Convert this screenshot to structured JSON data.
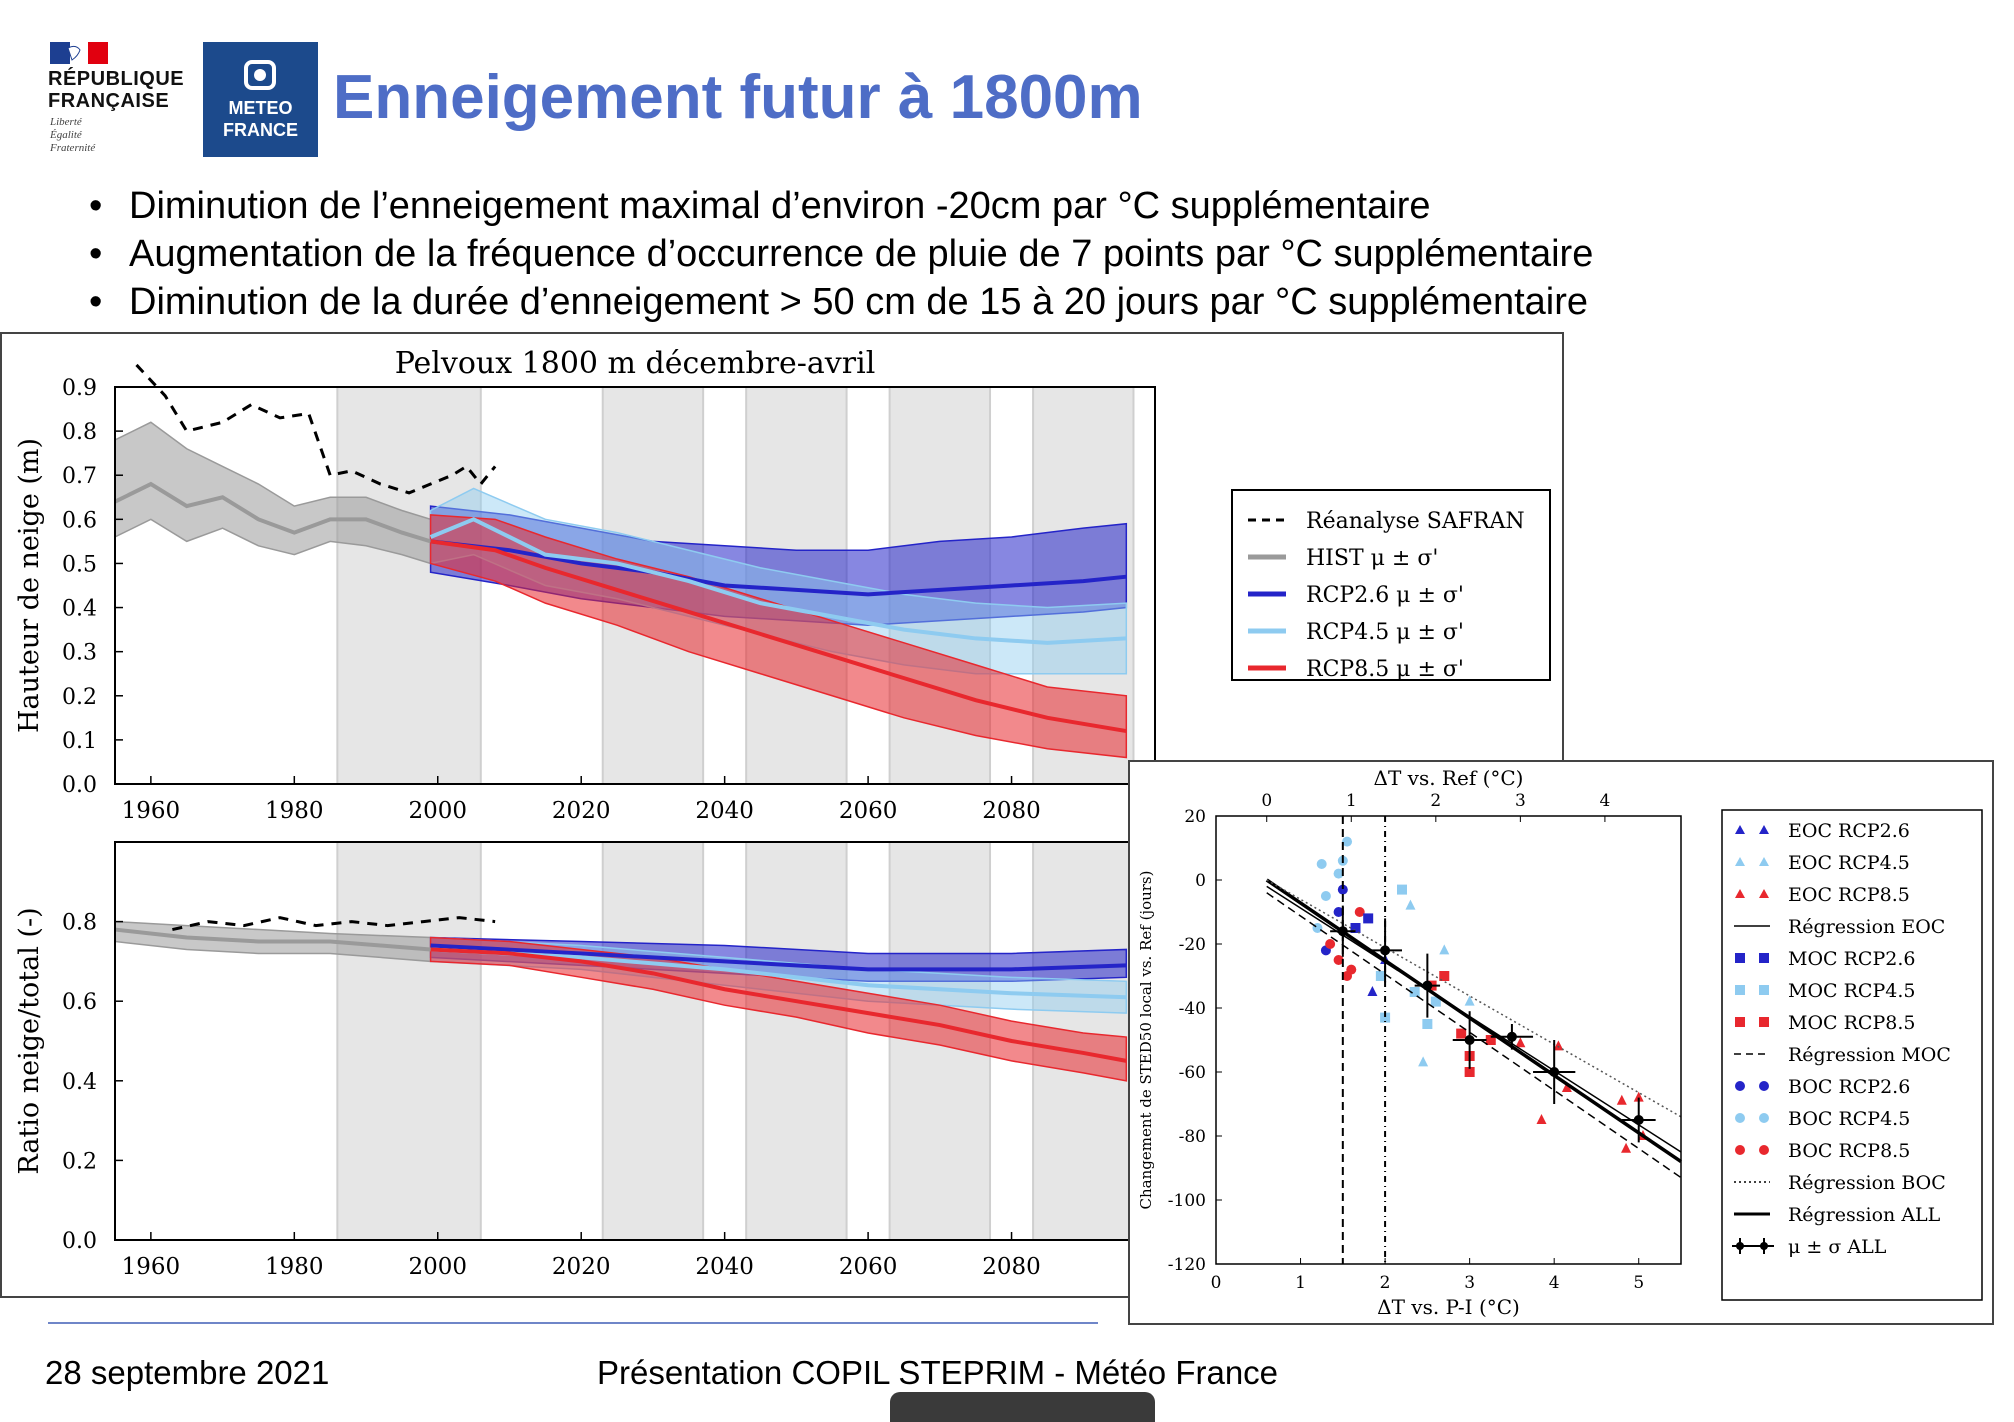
{
  "header": {
    "title": "Enneigement futur à 1800m",
    "logo_rf_lines": [
      "RÉPUBLIQUE",
      "FRANÇAISE"
    ],
    "logo_rf_motto": [
      "Liberté",
      "Égalité",
      "Fraternité"
    ],
    "logo_mf_lines": [
      "METEO",
      "FRANCE"
    ]
  },
  "bullets": [
    "Diminution de l’enneigement maximal d’environ -20cm par °C supplémentaire",
    "Augmentation de la fréquence d’occurrence de pluie de 7 points par °C supplémentaire",
    "Diminution de la durée d’enneigement > 50 cm de 15 à 20 jours par °C supplémentaire"
  ],
  "footer": {
    "date": "28 septembre 2021",
    "title": "Présentation COPIL STEPRIM - Météo France"
  },
  "colors": {
    "title": "#4e6dc6",
    "hist": "#9a9a9a",
    "rcp26": "#2424c8",
    "rcp45": "#8ecbf0",
    "rcp85": "#e8282e",
    "safran": "#000000"
  },
  "chart_data": [
    {
      "type": "line",
      "title": "Pelvoux 1800 m décembre-avril",
      "xlabel": "",
      "ylabel": "Hauteur de neige (m)",
      "xlim": [
        1955,
        2100
      ],
      "ylim": [
        0.0,
        0.9
      ],
      "xticks": [
        1960,
        1980,
        2000,
        2020,
        2040,
        2060,
        2080
      ],
      "yticks": [
        0.0,
        0.1,
        0.2,
        0.3,
        0.4,
        0.5,
        0.6,
        0.7,
        0.8,
        0.9
      ],
      "ytick_labels": [
        "0.0",
        "0.1",
        "0.2",
        "0.3",
        "0.4",
        "0.5",
        "0.6",
        "0.7",
        "0.8",
        "0.9"
      ],
      "shaded_periods": [
        [
          1986,
          2006
        ],
        [
          2023,
          2037
        ],
        [
          2043,
          2057
        ],
        [
          2063,
          2077
        ],
        [
          2083,
          2097
        ]
      ],
      "legend": [
        "Réanalyse SAFRAN",
        "HIST μ ± σ'",
        "RCP2.6 μ ± σ'",
        "RCP4.5 μ ± σ'",
        "RCP8.5 μ ± σ'"
      ],
      "legend_position": "right",
      "series": [
        {
          "name": "Réanalyse SAFRAN",
          "style": "dashed",
          "x": [
            1958,
            1962,
            1965,
            1970,
            1974,
            1978,
            1982,
            1985,
            1988,
            1992,
            1996,
            1999,
            2002,
            2004,
            2006,
            2008
          ],
          "y": [
            0.95,
            0.88,
            0.8,
            0.82,
            0.86,
            0.83,
            0.84,
            0.7,
            0.71,
            0.68,
            0.66,
            0.68,
            0.7,
            0.72,
            0.68,
            0.72
          ]
        },
        {
          "name": "HIST μ ± σ'",
          "x": [
            1955,
            1960,
            1965,
            1970,
            1975,
            1980,
            1985,
            1990,
            1995,
            1999
          ],
          "y": [
            0.64,
            0.68,
            0.63,
            0.65,
            0.6,
            0.57,
            0.6,
            0.6,
            0.57,
            0.55
          ],
          "lower": [
            0.56,
            0.6,
            0.55,
            0.58,
            0.54,
            0.52,
            0.55,
            0.54,
            0.52,
            0.5
          ],
          "upper": [
            0.78,
            0.82,
            0.76,
            0.72,
            0.68,
            0.63,
            0.65,
            0.65,
            0.62,
            0.6
          ]
        },
        {
          "name": "RCP2.6 μ ± σ'",
          "x": [
            1999,
            2010,
            2020,
            2030,
            2040,
            2050,
            2060,
            2070,
            2080,
            2090,
            2096
          ],
          "y": [
            0.55,
            0.53,
            0.5,
            0.48,
            0.45,
            0.44,
            0.43,
            0.44,
            0.45,
            0.46,
            0.47
          ],
          "lower": [
            0.48,
            0.45,
            0.42,
            0.4,
            0.38,
            0.37,
            0.36,
            0.37,
            0.38,
            0.39,
            0.4
          ],
          "upper": [
            0.63,
            0.61,
            0.58,
            0.55,
            0.54,
            0.53,
            0.53,
            0.55,
            0.56,
            0.58,
            0.59
          ]
        },
        {
          "name": "RCP4.5 μ ± σ'",
          "x": [
            1999,
            2005,
            2015,
            2025,
            2035,
            2045,
            2055,
            2065,
            2075,
            2085,
            2096
          ],
          "y": [
            0.56,
            0.6,
            0.52,
            0.5,
            0.46,
            0.41,
            0.38,
            0.35,
            0.33,
            0.32,
            0.33
          ],
          "lower": [
            0.5,
            0.52,
            0.45,
            0.42,
            0.38,
            0.34,
            0.3,
            0.27,
            0.25,
            0.25,
            0.25
          ],
          "upper": [
            0.62,
            0.67,
            0.6,
            0.57,
            0.53,
            0.49,
            0.46,
            0.43,
            0.41,
            0.4,
            0.41
          ]
        },
        {
          "name": "RCP8.5 μ ± σ'",
          "x": [
            1999,
            2008,
            2015,
            2025,
            2035,
            2045,
            2055,
            2065,
            2075,
            2085,
            2096
          ],
          "y": [
            0.55,
            0.53,
            0.49,
            0.44,
            0.39,
            0.34,
            0.29,
            0.24,
            0.19,
            0.15,
            0.12
          ],
          "lower": [
            0.5,
            0.46,
            0.41,
            0.36,
            0.3,
            0.25,
            0.2,
            0.15,
            0.11,
            0.08,
            0.06
          ],
          "upper": [
            0.61,
            0.6,
            0.56,
            0.51,
            0.47,
            0.42,
            0.37,
            0.32,
            0.27,
            0.22,
            0.2
          ]
        }
      ]
    },
    {
      "type": "line",
      "title": "",
      "xlabel": "",
      "ylabel": "Ratio neige/total (-)",
      "xlim": [
        1955,
        2100
      ],
      "ylim": [
        0.0,
        1.0
      ],
      "xticks": [
        1960,
        1980,
        2000,
        2020,
        2040,
        2060,
        2080
      ],
      "yticks": [
        0.0,
        0.2,
        0.4,
        0.6,
        0.8
      ],
      "ytick_labels": [
        "0.0",
        "0.2",
        "0.4",
        "0.6",
        "0.8"
      ],
      "shaded_periods": [
        [
          1986,
          2006
        ],
        [
          2023,
          2037
        ],
        [
          2043,
          2057
        ],
        [
          2063,
          2077
        ],
        [
          2083,
          2097
        ]
      ],
      "series": [
        {
          "name": "Réanalyse SAFRAN",
          "style": "dashed",
          "x": [
            1963,
            1968,
            1973,
            1978,
            1983,
            1988,
            1993,
            1998,
            2003,
            2008
          ],
          "y": [
            0.78,
            0.8,
            0.79,
            0.81,
            0.79,
            0.8,
            0.79,
            0.8,
            0.81,
            0.8
          ]
        },
        {
          "name": "HIST μ ± σ'",
          "x": [
            1955,
            1965,
            1975,
            1985,
            1999
          ],
          "y": [
            0.78,
            0.76,
            0.75,
            0.75,
            0.73
          ],
          "lower": [
            0.75,
            0.73,
            0.72,
            0.72,
            0.7
          ],
          "upper": [
            0.8,
            0.79,
            0.78,
            0.77,
            0.76
          ]
        },
        {
          "name": "RCP2.6 μ ± σ'",
          "x": [
            1999,
            2020,
            2040,
            2060,
            2080,
            2096
          ],
          "y": [
            0.74,
            0.72,
            0.7,
            0.68,
            0.68,
            0.69
          ],
          "lower": [
            0.71,
            0.69,
            0.67,
            0.65,
            0.65,
            0.66
          ],
          "upper": [
            0.76,
            0.75,
            0.74,
            0.72,
            0.72,
            0.73
          ]
        },
        {
          "name": "RCP4.5 μ ± σ'",
          "x": [
            1999,
            2020,
            2040,
            2060,
            2080,
            2096
          ],
          "y": [
            0.73,
            0.71,
            0.68,
            0.64,
            0.62,
            0.61
          ],
          "lower": [
            0.7,
            0.68,
            0.64,
            0.6,
            0.58,
            0.57
          ],
          "upper": [
            0.76,
            0.74,
            0.71,
            0.68,
            0.66,
            0.65
          ]
        },
        {
          "name": "RCP8.5 μ ± σ'",
          "x": [
            1999,
            2010,
            2020,
            2030,
            2040,
            2050,
            2060,
            2070,
            2080,
            2090,
            2096
          ],
          "y": [
            0.73,
            0.72,
            0.7,
            0.67,
            0.63,
            0.6,
            0.57,
            0.54,
            0.5,
            0.47,
            0.45
          ],
          "lower": [
            0.7,
            0.69,
            0.66,
            0.63,
            0.59,
            0.56,
            0.52,
            0.49,
            0.45,
            0.42,
            0.4
          ],
          "upper": [
            0.76,
            0.75,
            0.73,
            0.71,
            0.68,
            0.65,
            0.62,
            0.59,
            0.55,
            0.52,
            0.51
          ]
        }
      ]
    },
    {
      "type": "scatter",
      "title": "",
      "xlabel": "ΔT vs. P-I (°C)",
      "xlabel_top": "ΔT vs. Ref (°C)",
      "ylabel": "Changement de STED50 local vs. Ref (jours)",
      "xlim": [
        0,
        5.5
      ],
      "ylim": [
        -120,
        20
      ],
      "xticks": [
        0,
        1,
        2,
        3,
        4,
        5
      ],
      "xticks_top": [
        0,
        1,
        2,
        3,
        4
      ],
      "yticks": [
        -120,
        -100,
        -80,
        -60,
        -40,
        -20,
        0,
        20
      ],
      "vlines": [
        {
          "x": 1.5,
          "style": "dashed"
        },
        {
          "x": 2.0,
          "style": "dashdot"
        }
      ],
      "legend": [
        "EOC RCP2.6",
        "EOC RCP4.5",
        "EOC RCP8.5",
        "Régression EOC",
        "MOC RCP2.6",
        "MOC RCP4.5",
        "MOC RCP8.5",
        "Régression MOC",
        "BOC RCP2.6",
        "BOC RCP4.5",
        "BOC RCP8.5",
        "Régression BOC",
        "Régression ALL",
        "μ ± σ ALL"
      ],
      "legend_position": "right",
      "regressions": [
        {
          "name": "Régression ALL",
          "x": [
            0.6,
            5.5
          ],
          "y": [
            0,
            -88
          ],
          "style": "solid-thick"
        },
        {
          "name": "Régression EOC",
          "x": [
            0.6,
            5.5
          ],
          "y": [
            -2,
            -85
          ],
          "style": "solid"
        },
        {
          "name": "Régression MOC",
          "x": [
            0.6,
            5.5
          ],
          "y": [
            -4,
            -93
          ],
          "style": "dashed"
        },
        {
          "name": "Régression BOC",
          "x": [
            0.6,
            5.5
          ],
          "y": [
            0,
            -74
          ],
          "style": "dotted"
        }
      ],
      "summary_points": [
        {
          "x": 1.5,
          "y": -16,
          "xerr": 0.15,
          "yerr": 8
        },
        {
          "x": 2.0,
          "y": -22,
          "xerr": 0.2,
          "yerr": 10
        },
        {
          "x": 2.5,
          "y": -33,
          "xerr": 0.15,
          "yerr": 10
        },
        {
          "x": 3.0,
          "y": -50,
          "xerr": 0.2,
          "yerr": 9
        },
        {
          "x": 3.5,
          "y": -49,
          "xerr": 0.25,
          "yerr": 4
        },
        {
          "x": 4.0,
          "y": -60,
          "xerr": 0.25,
          "yerr": 10
        },
        {
          "x": 5.0,
          "y": -75,
          "xerr": 0.2,
          "yerr": 7
        }
      ],
      "points": [
        {
          "group": "BOC RCP4.5",
          "x": 1.55,
          "y": 12
        },
        {
          "group": "BOC RCP4.5",
          "x": 1.5,
          "y": 6
        },
        {
          "group": "BOC RCP4.5",
          "x": 1.45,
          "y": 2
        },
        {
          "group": "BOC RCP4.5",
          "x": 1.25,
          "y": 5
        },
        {
          "group": "BOC RCP4.5",
          "x": 1.3,
          "y": -5
        },
        {
          "group": "BOC RCP4.5",
          "x": 1.2,
          "y": -15
        },
        {
          "group": "BOC RCP2.6",
          "x": 1.5,
          "y": -3
        },
        {
          "group": "BOC RCP2.6",
          "x": 1.3,
          "y": -22
        },
        {
          "group": "BOC RCP2.6",
          "x": 1.45,
          "y": -10
        },
        {
          "group": "BOC RCP8.5",
          "x": 1.55,
          "y": -30
        },
        {
          "group": "BOC RCP8.5",
          "x": 1.6,
          "y": -28
        },
        {
          "group": "BOC RCP8.5",
          "x": 1.7,
          "y": -10
        },
        {
          "group": "BOC RCP8.5",
          "x": 1.45,
          "y": -25
        },
        {
          "group": "BOC RCP8.5",
          "x": 1.35,
          "y": -20
        },
        {
          "group": "MOC RCP2.6",
          "x": 1.65,
          "y": -15
        },
        {
          "group": "MOC RCP2.6",
          "x": 1.8,
          "y": -12
        },
        {
          "group": "MOC RCP4.5",
          "x": 1.95,
          "y": -30
        },
        {
          "group": "MOC RCP4.5",
          "x": 2.0,
          "y": -43
        },
        {
          "group": "MOC RCP4.5",
          "x": 2.2,
          "y": -3
        },
        {
          "group": "MOC RCP4.5",
          "x": 2.35,
          "y": -35
        },
        {
          "group": "MOC RCP4.5",
          "x": 2.5,
          "y": -45
        },
        {
          "group": "MOC RCP4.5",
          "x": 2.6,
          "y": -38
        },
        {
          "group": "MOC RCP8.5",
          "x": 2.55,
          "y": -33
        },
        {
          "group": "MOC RCP8.5",
          "x": 2.7,
          "y": -30
        },
        {
          "group": "MOC RCP8.5",
          "x": 2.9,
          "y": -48
        },
        {
          "group": "MOC RCP8.5",
          "x": 3.0,
          "y": -55
        },
        {
          "group": "MOC RCP8.5",
          "x": 3.0,
          "y": -60
        },
        {
          "group": "MOC RCP8.5",
          "x": 3.25,
          "y": -50
        },
        {
          "group": "EOC RCP4.5",
          "x": 2.3,
          "y": -8
        },
        {
          "group": "EOC RCP4.5",
          "x": 2.45,
          "y": -57
        },
        {
          "group": "EOC RCP4.5",
          "x": 2.7,
          "y": -22
        },
        {
          "group": "EOC RCP4.5",
          "x": 3.0,
          "y": -38
        },
        {
          "group": "EOC RCP2.6",
          "x": 1.85,
          "y": -35
        },
        {
          "group": "EOC RCP2.6",
          "x": 2.0,
          "y": -25
        },
        {
          "group": "EOC RCP8.5",
          "x": 3.6,
          "y": -51
        },
        {
          "group": "EOC RCP8.5",
          "x": 3.85,
          "y": -75
        },
        {
          "group": "EOC RCP8.5",
          "x": 4.05,
          "y": -52
        },
        {
          "group": "EOC RCP8.5",
          "x": 4.15,
          "y": -65
        },
        {
          "group": "EOC RCP8.5",
          "x": 4.8,
          "y": -69
        },
        {
          "group": "EOC RCP8.5",
          "x": 4.85,
          "y": -84
        },
        {
          "group": "EOC RCP8.5",
          "x": 5.05,
          "y": -80
        },
        {
          "group": "EOC RCP8.5",
          "x": 5.0,
          "y": -68
        }
      ]
    }
  ]
}
